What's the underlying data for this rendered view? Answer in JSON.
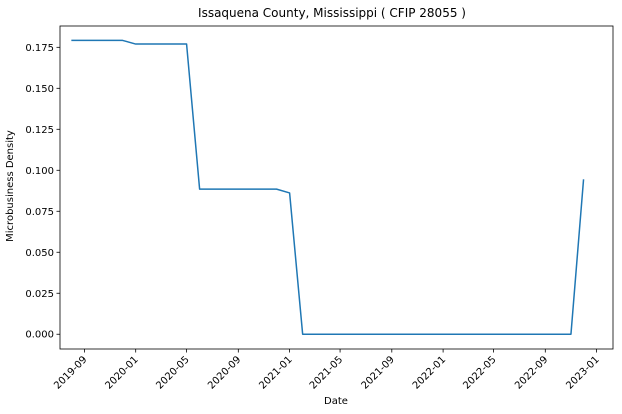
{
  "chart_data": {
    "type": "line",
    "title": "Issaquena County, Mississippi ( CFIP 28055 )",
    "xlabel": "Date",
    "ylabel": "Microbusiness Density",
    "xlim": [
      "2019-07-05",
      "2023-02-09"
    ],
    "ylim": [
      -0.009,
      0.188
    ],
    "x_ticks": [
      "2019-09",
      "2020-01",
      "2020-05",
      "2020-09",
      "2021-01",
      "2021-05",
      "2021-09",
      "2022-01",
      "2022-05",
      "2022-09",
      "2023-01"
    ],
    "y_ticks": [
      0.0,
      0.025,
      0.05,
      0.075,
      0.1,
      0.125,
      0.15,
      0.175
    ],
    "y_tick_labels": [
      "0.000",
      "0.025",
      "0.050",
      "0.075",
      "0.100",
      "0.125",
      "0.150",
      "0.175"
    ],
    "grid": false,
    "line_color": "#1f77b4",
    "series": [
      {
        "x": [
          "2019-08-01",
          "2019-09-01",
          "2019-10-01",
          "2019-11-01",
          "2019-12-01",
          "2020-01-01",
          "2020-02-01",
          "2020-03-01",
          "2020-04-01",
          "2020-05-01",
          "2020-06-01",
          "2020-07-01",
          "2020-08-01",
          "2020-09-01",
          "2020-10-01",
          "2020-11-01",
          "2020-12-01",
          "2021-01-01",
          "2021-02-01",
          "2021-03-01",
          "2021-04-01",
          "2021-05-01",
          "2021-06-01",
          "2021-07-01",
          "2021-08-01",
          "2021-09-01",
          "2021-10-01",
          "2021-11-01",
          "2021-12-01",
          "2022-01-01",
          "2022-02-01",
          "2022-03-01",
          "2022-04-01",
          "2022-05-01",
          "2022-06-01",
          "2022-07-01",
          "2022-08-01",
          "2022-09-01",
          "2022-10-01",
          "2022-11-01",
          "2022-12-01"
        ],
        "values": [
          0.1792,
          0.1792,
          0.1792,
          0.1792,
          0.1792,
          0.177,
          0.177,
          0.177,
          0.177,
          0.177,
          0.0885,
          0.0885,
          0.0885,
          0.0885,
          0.0885,
          0.0885,
          0.0885,
          0.0862,
          0.0,
          0.0,
          0.0,
          0.0,
          0.0,
          0.0,
          0.0,
          0.0,
          0.0,
          0.0,
          0.0,
          0.0,
          0.0,
          0.0,
          0.0,
          0.0,
          0.0,
          0.0,
          0.0,
          0.0,
          0.0,
          0.0,
          0.0945
        ]
      }
    ]
  }
}
